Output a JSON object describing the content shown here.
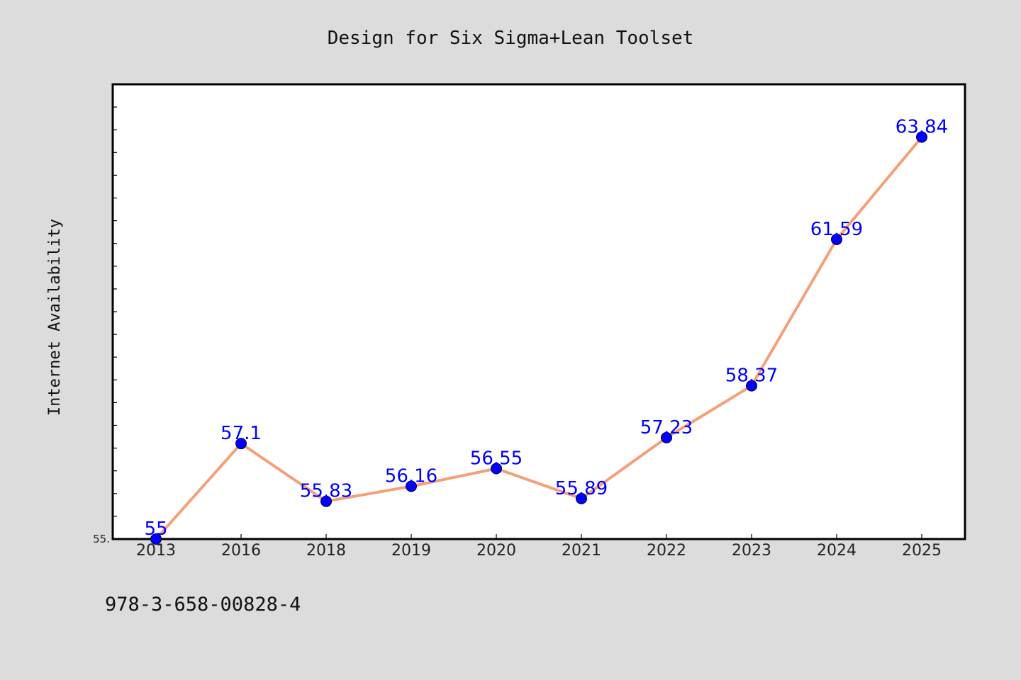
{
  "footer": {
    "isbn": "978-3-658-00828-4"
  },
  "colors": {
    "line": "#f4a07a",
    "marker": "#0000ff",
    "label": "#0000ff",
    "plot_bg": "#ffffff",
    "figure_bg": "#dcdcdc"
  },
  "chart_data": {
    "type": "line",
    "title": "Design for Six Sigma+Lean Toolset",
    "xlabel": "",
    "ylabel": "Internet Availability",
    "categories": [
      "2013",
      "2016",
      "2018",
      "2019",
      "2020",
      "2021",
      "2022",
      "2023",
      "2024",
      "2025"
    ],
    "series": [
      {
        "values": [
          55,
          57.1,
          55.83,
          56.16,
          56.55,
          55.89,
          57.23,
          58.37,
          61.59,
          63.84
        ],
        "labels": [
          "55",
          "57.1",
          "55.83",
          "56.16",
          "56.55",
          "55.89",
          "57.23",
          "58.37",
          "61.59",
          "63.84"
        ]
      }
    ],
    "ylim": [
      55,
      65
    ],
    "ytick_labels": [
      "55."
    ],
    "grid": false,
    "legend": "none"
  }
}
